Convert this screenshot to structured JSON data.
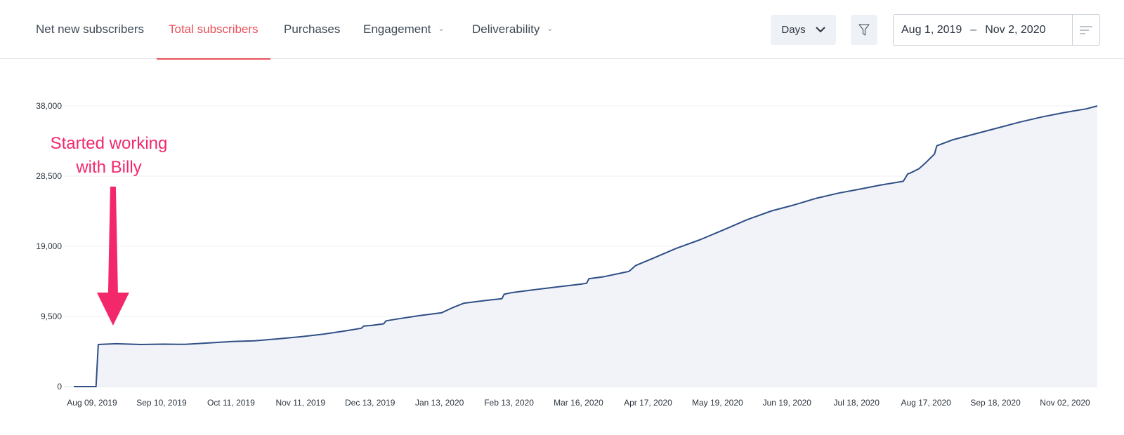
{
  "nav": {
    "tabs": [
      {
        "label": "Net new subscribers",
        "dropdown": false
      },
      {
        "label": "Total subscribers",
        "dropdown": false,
        "active": true
      },
      {
        "label": "Purchases",
        "dropdown": false
      },
      {
        "label": "Engagement",
        "dropdown": true
      },
      {
        "label": "Deliverability",
        "dropdown": true
      }
    ]
  },
  "controls": {
    "granularity": "Days",
    "date_from": "Aug 1, 2019",
    "date_separator": "–",
    "date_to": "Nov 2, 2020"
  },
  "colors": {
    "accent": "#e8505b",
    "line": "#2f4f86",
    "area": "#f1f3f8",
    "annotation": "#f2286a"
  },
  "chart_data": {
    "type": "area",
    "title": "",
    "xlabel": "",
    "ylabel": "",
    "ylim": [
      0,
      38000
    ],
    "grid": true,
    "legend": "none",
    "y_ticks": [
      0,
      9500,
      19000,
      28500,
      38000
    ],
    "y_tick_labels": [
      "0",
      "9,500",
      "19,000",
      "28,500",
      "38,000"
    ],
    "x_tick_labels": [
      "Aug 09, 2019",
      "Sep 10, 2019",
      "Oct 11, 2019",
      "Nov 11, 2019",
      "Dec 13, 2019",
      "Jan 13, 2020",
      "Feb 13, 2020",
      "Mar 16, 2020",
      "Apr 17, 2020",
      "May 19, 2020",
      "Jun 19, 2020",
      "Jul 18, 2020",
      "Aug 17, 2020",
      "Sep 18, 2020",
      "Nov 02, 2020"
    ],
    "series": [
      {
        "x": [
          "2019-08-01",
          "2019-08-11",
          "2019-08-12",
          "2019-08-20",
          "2019-08-31",
          "2019-09-10",
          "2019-09-20",
          "2019-09-30",
          "2019-10-11",
          "2019-10-21",
          "2019-10-31",
          "2019-11-11",
          "2019-11-21",
          "2019-12-01",
          "2019-12-08",
          "2019-12-09",
          "2019-12-13",
          "2019-12-18",
          "2019-12-19",
          "2019-12-25",
          "2020-01-03",
          "2020-01-13",
          "2020-01-18",
          "2020-01-23",
          "2020-02-03",
          "2020-02-09",
          "2020-02-10",
          "2020-02-13",
          "2020-02-23",
          "2020-03-05",
          "2020-03-16",
          "2020-03-18",
          "2020-03-19",
          "2020-03-26",
          "2020-04-06",
          "2020-04-09",
          "2020-04-17",
          "2020-04-27",
          "2020-05-08",
          "2020-05-19",
          "2020-05-29",
          "2020-06-09",
          "2020-06-19",
          "2020-06-29",
          "2020-07-09",
          "2020-07-18",
          "2020-07-28",
          "2020-08-07",
          "2020-08-09",
          "2020-08-10",
          "2020-08-14",
          "2020-08-17",
          "2020-08-21",
          "2020-08-22",
          "2020-08-29",
          "2020-09-08",
          "2020-09-18",
          "2020-09-28",
          "2020-10-08",
          "2020-10-18",
          "2020-10-28",
          "2020-11-02"
        ],
        "values": [
          0,
          0,
          5700,
          5800,
          5700,
          5750,
          5720,
          5900,
          6100,
          6200,
          6450,
          6750,
          7100,
          7550,
          7900,
          8200,
          8300,
          8500,
          8900,
          9200,
          9600,
          10000,
          10700,
          11300,
          11700,
          11900,
          12500,
          12700,
          13100,
          13500,
          13900,
          14000,
          14600,
          14900,
          15600,
          16400,
          17400,
          18700,
          19900,
          21300,
          22600,
          23800,
          24600,
          25500,
          26200,
          26700,
          27300,
          27800,
          28800,
          28900,
          29500,
          30300,
          31500,
          32600,
          33400,
          34200,
          35000,
          35800,
          36500,
          37100,
          37600,
          38000
        ]
      }
    ],
    "annotation": {
      "text": "Started working with Billy",
      "date": "2019-08-12"
    }
  }
}
